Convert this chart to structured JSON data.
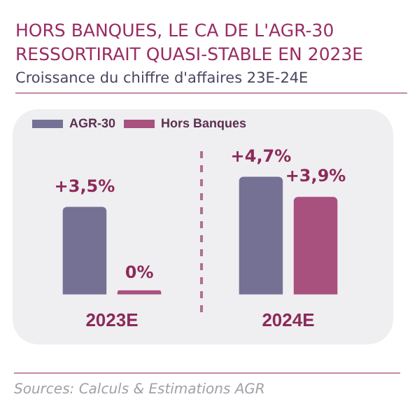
{
  "chart_data": {
    "type": "bar",
    "title": "HORS BANQUES, LE CA DE L'AGR-30 RESSORTIRAIT QUASI-STABLE EN 2023E",
    "subtitle": "Croissance du chiffre d'affaires 23E-24E",
    "categories": [
      "2023E",
      "2024E"
    ],
    "series": [
      {
        "name": "AGR-30",
        "color": "#757194",
        "values": [
          3.5,
          4.7
        ],
        "value_labels": [
          "+3,5%",
          "+4,7%"
        ]
      },
      {
        "name": "Hors Banques",
        "color": "#a8507e",
        "values": [
          0,
          3.9
        ],
        "value_labels": [
          "0%",
          "+3,9%"
        ]
      }
    ],
    "legend": "top left",
    "grid": false,
    "annotations": [
      "Sources: Calculs & Estimations AGR"
    ]
  }
}
